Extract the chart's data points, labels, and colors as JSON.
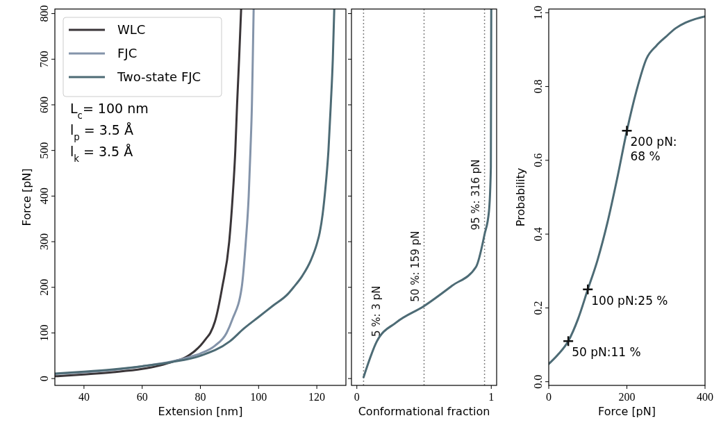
{
  "chart_data": [
    {
      "type": "line",
      "xlabel": "Extension [nm]",
      "ylabel": "Force [pN]",
      "xlim": [
        30,
        130
      ],
      "ylim": [
        -15,
        810
      ],
      "xticks": [
        40,
        60,
        80,
        100,
        120
      ],
      "yticks": [
        0,
        100,
        200,
        300,
        400,
        500,
        600,
        700,
        800
      ],
      "legend": "top left",
      "line_style": "solid",
      "annotations": [
        "L$_{c}$= 100 nm",
        "l$_{p}$ = 3.5 Å",
        "l$_{k}$ = 3.5 Å"
      ],
      "series": [
        {
          "name": "WLC",
          "color": "#3a3538",
          "x": [
            30,
            40,
            50,
            60,
            65,
            70,
            75,
            78,
            80,
            82,
            83.4,
            85,
            87.5,
            89.9,
            91.1,
            92,
            92.6,
            93.3,
            94
          ],
          "values": [
            5,
            9,
            14,
            21,
            27,
            36,
            47,
            60,
            72,
            88,
            100,
            125,
            200,
            300,
            400,
            500,
            600,
            700,
            810
          ]
        },
        {
          "name": "FJC",
          "color": "#8494aa",
          "x": [
            30,
            40,
            50,
            60,
            70,
            75,
            80,
            85,
            89,
            91,
            94.2,
            95.6,
            96.6,
            97.2,
            97.7,
            98,
            98.3
          ],
          "values": [
            10,
            14,
            19,
            27,
            37,
            45,
            55,
            72,
            100,
            130,
            200,
            300,
            400,
            500,
            600,
            700,
            810
          ]
        },
        {
          "name": "Two-state FJC",
          "color": "#4d6b75",
          "x": [
            30,
            40,
            50,
            60,
            70,
            80,
            90,
            95,
            100,
            105,
            110,
            112,
            115,
            118,
            120,
            121,
            122,
            123,
            124,
            124.8,
            125.5,
            126
          ],
          "values": [
            11,
            15,
            20,
            27,
            36,
            50,
            81,
            110,
            135,
            160,
            185,
            200,
            225,
            260,
            295,
            320,
            360,
            420,
            500,
            600,
            700,
            810
          ]
        }
      ]
    },
    {
      "type": "line",
      "xlabel": "Conformational fraction",
      "xlim": [
        -0.04,
        1.04
      ],
      "ylim": [
        -15,
        810
      ],
      "xticks": [
        0,
        1
      ],
      "yticks": [
        0,
        100,
        200,
        300,
        400,
        500,
        600,
        700,
        800
      ],
      "tick_labels": "x",
      "line_style": "solid",
      "ref_lines": [
        {
          "axis": "x",
          "value": 0.05,
          "label": "5 %: 3 pN",
          "color": "#808080",
          "line_style": "dotted"
        },
        {
          "axis": "x",
          "value": 0.5,
          "label": "50 %: 159 pN",
          "color": "#808080",
          "line_style": "dotted"
        },
        {
          "axis": "x",
          "value": 0.95,
          "label": "95 %: 316 pN",
          "color": "#808080",
          "line_style": "dotted"
        }
      ],
      "series": [
        {
          "color": "#4d6b75",
          "x": [
            0.05,
            0.148,
            0.293,
            0.5,
            0.706,
            0.887,
            0.95,
            0.983,
            0.997,
            1.0
          ],
          "values": [
            3,
            81,
            123,
            159,
            203,
            245,
            316,
            367,
            464,
            810
          ]
        }
      ]
    },
    {
      "type": "line",
      "xlabel": "Force [pN]",
      "ylabel": "Probability",
      "xlim": [
        0,
        400
      ],
      "ylim": [
        -0.01,
        1.01
      ],
      "xticks": [
        0,
        200,
        400
      ],
      "yticks": [
        {
          "value": 0,
          "label": "0.0"
        },
        0.2,
        0.4,
        0.6,
        0.8,
        {
          "value": 1,
          "label": "1.0"
        }
      ],
      "line_style": "solid",
      "annotations": [
        {
          "text": "50 pN:11 %",
          "x": 50,
          "y": 0.11
        },
        {
          "text": "100 pN:25 %",
          "x": 100,
          "y": 0.25
        },
        {
          "text": "200 pN:\n68 %",
          "x": 200,
          "y": 0.68
        }
      ],
      "series": [
        {
          "color": "#4d6b75",
          "x": [
            0,
            25,
            50,
            75,
            100,
            125,
            150,
            175,
            200,
            225,
            250,
            275,
            300,
            325,
            350,
            375,
            400
          ],
          "values": [
            0.048,
            0.075,
            0.11,
            0.17,
            0.25,
            0.33,
            0.43,
            0.55,
            0.68,
            0.79,
            0.875,
            0.91,
            0.935,
            0.958,
            0.973,
            0.983,
            0.99
          ]
        },
        {
          "type": "scatter",
          "marker": "cross",
          "color": "#111111",
          "x": [
            50,
            100,
            200
          ],
          "values": [
            0.11,
            0.25,
            0.68
          ]
        }
      ]
    }
  ]
}
